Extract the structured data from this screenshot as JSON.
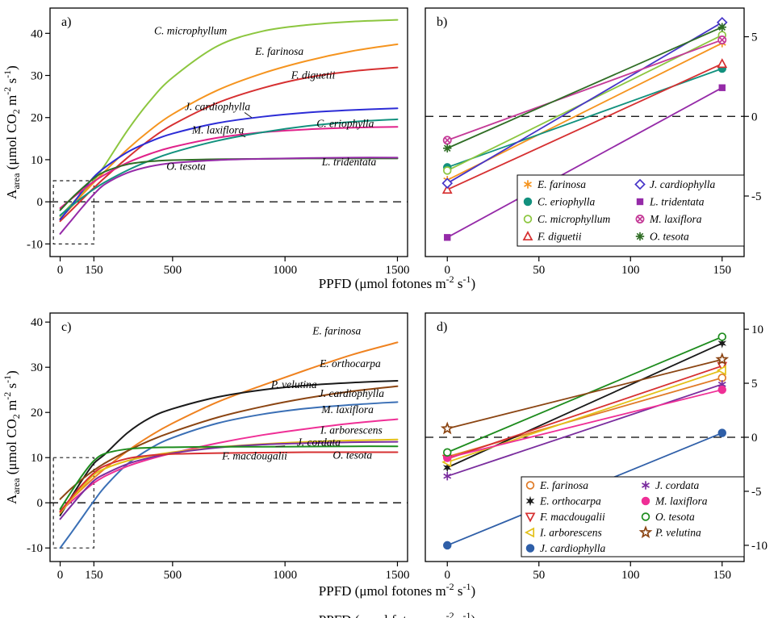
{
  "figure": {
    "background": "#ffffff",
    "x_axis_title_segments": [
      {
        "t": "PPFD (μmol fotones m"
      },
      {
        "t": "-2",
        "s": "sup"
      },
      {
        "t": " s"
      },
      {
        "t": "-1",
        "s": "sup"
      },
      {
        "t": ")"
      }
    ],
    "y_axis_title_segments": [
      {
        "t": "A"
      },
      {
        "t": "area",
        "s": "sub"
      },
      {
        "t": " (μmol CO"
      },
      {
        "t": "2",
        "s": "sub"
      },
      {
        "t": " m"
      },
      {
        "t": "-2",
        "s": "sup"
      },
      {
        "t": " s"
      },
      {
        "t": "-1",
        "s": "sup"
      },
      {
        "t": ")"
      }
    ]
  },
  "chart_data": {
    "type": "line",
    "x_axis_label": "PPFD (μmol fotones m-2 s-1)",
    "y_axis_label": "Aarea (μmol CO2 m-2 s-1)",
    "panels": [
      {
        "id": "a",
        "letter": "a)",
        "kind": "curves",
        "xlim": [
          -45,
          1545
        ],
        "ylim": [
          -13,
          46
        ],
        "xticks": [
          0,
          150,
          500,
          1000,
          1500
        ],
        "yticks": [
          -10,
          0,
          10,
          20,
          30,
          40
        ],
        "ytick_side": "left",
        "zero_line_dashed": true,
        "inset_box": {
          "x": [
            -30,
            150
          ],
          "y": [
            -10,
            5
          ]
        },
        "x_samples": [
          0,
          50,
          100,
          150,
          200,
          300,
          400,
          500,
          700,
          900,
          1100,
          1300,
          1500
        ],
        "series": [
          {
            "name": "C. microphyllum",
            "color": "#8cc63f",
            "y": [
              -3.4,
              -0.6,
              2.3,
              5.1,
              8.8,
              17,
              24,
              29.5,
              37,
              40.5,
              42,
              42.8,
              43.2
            ],
            "label_at": [
              580,
              39.8
            ]
          },
          {
            "name": "E. farinosa",
            "color": "#f5941f",
            "y": [
              -4,
              -1.2,
              1.8,
              4.6,
              7.3,
              12.5,
              17,
              20.8,
              26.5,
              30.5,
              33.5,
              35.8,
              37.4
            ],
            "label_at": [
              975,
              34.9
            ]
          },
          {
            "name": "F. diguetii",
            "color": "#d63031",
            "y": [
              -4.6,
              -2,
              0.7,
              3.3,
              5.8,
              10.5,
              14.8,
              18.3,
              23.5,
              27,
              29.5,
              31,
              31.9
            ],
            "label_at": [
              1125,
              29.2
            ]
          },
          {
            "name": "J. cardiophylla",
            "color": "#2c2cd6",
            "y": [
              -4.2,
              -0.9,
              2.6,
              5.9,
              8.2,
              11.8,
              14.3,
              16.2,
              18.7,
              20.2,
              21.2,
              21.8,
              22.2
            ],
            "label_at": [
              700,
              21.8
            ],
            "leader": [
              820,
              21.2,
              852,
              20.0
            ]
          },
          {
            "name": "M. laxiflora",
            "color": "#e0218a",
            "y": [
              -1.5,
              0.7,
              2.8,
              4.8,
              6.5,
              9.3,
              11.4,
              13,
              15.2,
              16.5,
              17.2,
              17.6,
              17.8
            ],
            "label_at": [
              702,
              16.2
            ],
            "leader": [
              802,
              15.9,
              824,
              15.4
            ]
          },
          {
            "name": "C. eriophylla",
            "color": "#12917e",
            "y": [
              -3.2,
              -1,
              1.1,
              3,
              4.7,
              7.5,
              9.8,
              11.7,
              14.5,
              16.5,
              18,
              19,
              19.6
            ],
            "label_at": [
              1268,
              17.7
            ]
          },
          {
            "name": "O. tesota",
            "color": "#2f6d25",
            "y": [
              -2,
              0.8,
              3.3,
              5.6,
              7.2,
              8.9,
              9.6,
              9.9,
              10.1,
              10.2,
              10.3,
              10.3,
              10.3
            ],
            "label_at": [
              560,
              7.6
            ]
          },
          {
            "name": "L. tridentata",
            "color": "#952aa8",
            "y": [
              -7.6,
              -4.4,
              -1.2,
              1.8,
              4.2,
              6.9,
              8.4,
              9.2,
              9.9,
              10.2,
              10.4,
              10.5,
              10.5
            ],
            "label_at": [
              1285,
              8.6
            ]
          }
        ]
      },
      {
        "id": "b",
        "letter": "b)",
        "kind": "points",
        "xlim": [
          -12,
          162
        ],
        "ylim": [
          -8.8,
          6.8
        ],
        "xticks": [
          0,
          50,
          100,
          150
        ],
        "yticks": [
          -5,
          0,
          5
        ],
        "ytick_side": "right",
        "zero_line_dashed": true,
        "x_points": [
          0,
          150
        ],
        "series": [
          {
            "name": "E. farinosa",
            "color": "#f5941f",
            "symbol": "asterisk6",
            "filled": false,
            "y": [
              -4.0,
              4.6
            ]
          },
          {
            "name": "C. eriophylla",
            "color": "#12917e",
            "symbol": "circle",
            "filled": true,
            "y": [
              -3.2,
              3.0
            ]
          },
          {
            "name": "C. microphyllum",
            "color": "#8cc63f",
            "symbol": "circle",
            "filled": false,
            "y": [
              -3.4,
              5.1
            ]
          },
          {
            "name": "F. diguetii",
            "color": "#d63031",
            "symbol": "triangle-up",
            "filled": false,
            "y": [
              -4.6,
              3.3
            ]
          },
          {
            "name": "J. cardiophylla",
            "color": "#4634c8",
            "symbol": "diamond",
            "filled": false,
            "y": [
              -4.2,
              5.9
            ]
          },
          {
            "name": "L. tridentata",
            "color": "#952aa8",
            "symbol": "square",
            "filled": true,
            "y": [
              -7.6,
              1.8
            ]
          },
          {
            "name": "M. laxiflora",
            "color": "#c43a97",
            "symbol": "circle-x",
            "filled": false,
            "y": [
              -1.5,
              4.8
            ]
          },
          {
            "name": "O. tesota",
            "color": "#2f6d25",
            "symbol": "asterisk8",
            "filled": false,
            "y": [
              -2.0,
              5.6
            ]
          }
        ],
        "legend": {
          "columns": [
            [
              0,
              1,
              2,
              3
            ],
            [
              4,
              5,
              6,
              7
            ]
          ]
        }
      },
      {
        "id": "c",
        "letter": "c)",
        "kind": "curves",
        "xlim": [
          -45,
          1545
        ],
        "ylim": [
          -13,
          42
        ],
        "xticks": [
          0,
          150,
          500,
          1000,
          1500
        ],
        "yticks": [
          -10,
          0,
          10,
          20,
          30,
          40
        ],
        "ytick_side": "left",
        "zero_line_dashed": true,
        "inset_box": {
          "x": [
            -30,
            150
          ],
          "y": [
            -10,
            10
          ]
        },
        "x_samples": [
          0,
          50,
          100,
          150,
          200,
          300,
          400,
          500,
          700,
          900,
          1100,
          1300,
          1500
        ],
        "series": [
          {
            "name": "E. farinosa",
            "color": "#ef8220",
            "y": [
              -1.8,
              0.8,
              3.2,
              5.5,
              7.6,
              11.5,
              14.8,
              17.6,
              22.3,
              26,
              29.5,
              32.8,
              35.5
            ],
            "label_at": [
              1230,
              37.3
            ]
          },
          {
            "name": "E. orthocarpa",
            "color": "#1a1a1a",
            "y": [
              -2.8,
              1.3,
              5.2,
              8.7,
              10.8,
              15.5,
              18.8,
              20.8,
              23.4,
              25,
              26,
              26.6,
              27
            ],
            "label_at": [
              1290,
              30
            ]
          },
          {
            "name": "P. velutina",
            "color": "#8b4513",
            "y": [
              0.8,
              3.2,
              5.3,
              7.2,
              8.8,
              11.5,
              13.8,
              15.7,
              18.9,
              21.3,
              23.2,
              24.7,
              25.8
            ],
            "label_at": [
              1040,
              25.4
            ]
          },
          {
            "name": "J. cardiophylla",
            "color": "#3a6fb5",
            "y": [
              -10,
              -6.6,
              -3.1,
              0.4,
              3.6,
              8.6,
              12,
              14.4,
              17.6,
              19.6,
              20.9,
              21.7,
              22.3
            ],
            "label_at": [
              1295,
              23.4
            ]
          },
          {
            "name": "M. laxiflora",
            "color": "#ef2f96",
            "y": [
              -1.9,
              0.3,
              2.4,
              4.4,
              5.9,
              8.1,
              9.7,
              11,
              13.2,
              15,
              16.4,
              17.6,
              18.5
            ],
            "label_at": [
              1278,
              19.9
            ]
          },
          {
            "name": "I. arborescens",
            "color": "#e3c019",
            "y": [
              -2.3,
              0.8,
              3.6,
              6.2,
              7.6,
              9.3,
              10.4,
              11.2,
              12.3,
              13,
              13.5,
              13.8,
              14
            ],
            "label_at": [
              1295,
              15.3
            ]
          },
          {
            "name": "J. cordata",
            "color": "#7a2d9e",
            "y": [
              -3.6,
              -0.6,
              2.3,
              4.9,
              6.4,
              8.6,
              10,
              11,
              12.2,
              12.9,
              13.2,
              13.4,
              13.5
            ],
            "label_at": [
              1150,
              12.6
            ],
            "leader": [
              1000,
              12.6,
              958,
              12.45
            ]
          },
          {
            "name": "F. macdougalii",
            "color": "#d63031",
            "y": [
              -2,
              1.2,
              4.1,
              6.6,
              8.2,
              9.8,
              10.5,
              10.8,
              11,
              11.1,
              11.2,
              11.2,
              11.2
            ],
            "label_at": [
              865,
              9.6
            ]
          },
          {
            "name": "O. tesota",
            "color": "#1e8c1e",
            "y": [
              -1.4,
              2.5,
              6.2,
              9.3,
              10.9,
              11.9,
              12.2,
              12.3,
              12.4,
              12.4,
              12.45,
              12.5,
              12.5
            ],
            "label_at": [
              1300,
              9.8
            ]
          }
        ]
      },
      {
        "id": "d",
        "letter": "d)",
        "kind": "points",
        "xlim": [
          -12,
          162
        ],
        "ylim": [
          -11.5,
          11.5
        ],
        "xticks": [
          0,
          50,
          100,
          150
        ],
        "yticks": [
          -10,
          -5,
          0,
          5,
          10
        ],
        "ytick_side": "right",
        "zero_line_dashed": true,
        "x_points": [
          0,
          150
        ],
        "series": [
          {
            "name": "E. farinosa",
            "color": "#e07b28",
            "symbol": "circle",
            "filled": false,
            "y": [
              -1.8,
              5.5
            ]
          },
          {
            "name": "E. orthocarpa",
            "color": "#1a1a1a",
            "symbol": "star6",
            "filled": true,
            "y": [
              -2.8,
              8.7
            ]
          },
          {
            "name": "F. macdougalii",
            "color": "#d63031",
            "symbol": "triangle-down",
            "filled": false,
            "y": [
              -2.0,
              6.6
            ]
          },
          {
            "name": "I. arborescens",
            "color": "#e3c019",
            "symbol": "triangle-left",
            "filled": false,
            "y": [
              -2.3,
              6.2
            ]
          },
          {
            "name": "J. cardiophylla",
            "color": "#2f5fa8",
            "symbol": "circle",
            "filled": true,
            "y": [
              -10.0,
              0.4
            ]
          },
          {
            "name": "J. cordata",
            "color": "#7a2d9e",
            "symbol": "asterisk6",
            "filled": false,
            "y": [
              -3.6,
              4.9
            ]
          },
          {
            "name": "M. laxiflora",
            "color": "#ef2f96",
            "symbol": "circle",
            "filled": true,
            "y": [
              -1.9,
              4.4
            ]
          },
          {
            "name": "O. tesota",
            "color": "#1e8c1e",
            "symbol": "circle",
            "filled": false,
            "y": [
              -1.4,
              9.3
            ]
          },
          {
            "name": "P. velutina",
            "color": "#8b4513",
            "symbol": "star5",
            "filled": false,
            "y": [
              0.8,
              7.2
            ]
          }
        ],
        "legend": {
          "columns": [
            [
              0,
              1,
              2,
              3,
              4
            ],
            [
              5,
              6,
              7,
              8
            ]
          ]
        }
      }
    ]
  }
}
